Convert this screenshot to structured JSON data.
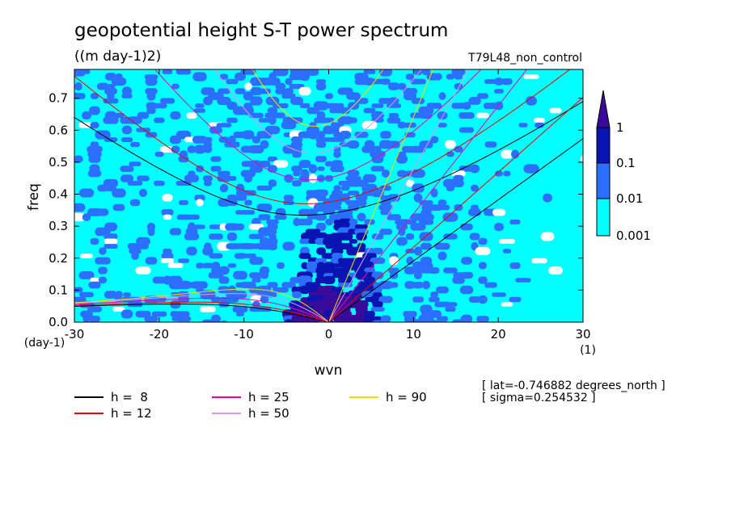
{
  "chart_data": {
    "type": "heatmap",
    "title": "geopotential height S-T power spectrum",
    "units": "((m day-1)2)",
    "run_name": "T79L48_non_control",
    "xlabel": "wvn",
    "ylabel": "freq",
    "x_unit": "(1)",
    "y_unit": "(day-1)",
    "xlim": [
      -30,
      30
    ],
    "ylim": [
      0,
      0.79
    ],
    "x_ticks": [
      "-30",
      "-20",
      "-10",
      "0",
      "10",
      "20",
      "30"
    ],
    "y_ticks": [
      "0.0",
      "0.1",
      "0.2",
      "0.3",
      "0.4",
      "0.5",
      "0.6",
      "0.7"
    ],
    "contour_levels": {
      "labels": [
        "0.001",
        "0.01",
        "0.1",
        "1"
      ],
      "colors": [
        "#00ffff",
        "#2c6fff",
        "#0a14b0",
        "#3a0a9a"
      ]
    },
    "dispersion_curves": [
      {
        "label": "h =  8",
        "h": 8,
        "color": "#000000"
      },
      {
        "label": "h = 12",
        "h": 12,
        "color": "#ee0000"
      },
      {
        "label": "h = 25",
        "h": 25,
        "color": "#ee00aa"
      },
      {
        "label": "h = 50",
        "h": 50,
        "color": "#dd99ee"
      },
      {
        "label": "h = 90",
        "h": 90,
        "color": "#eedd00"
      }
    ],
    "annotations": [
      "[ lat=-0.746882 degrees_north ]",
      "[ sigma=0.254532 ]"
    ],
    "background_color": "#00ffff",
    "grid": false,
    "legend_position": "bottom-left"
  }
}
